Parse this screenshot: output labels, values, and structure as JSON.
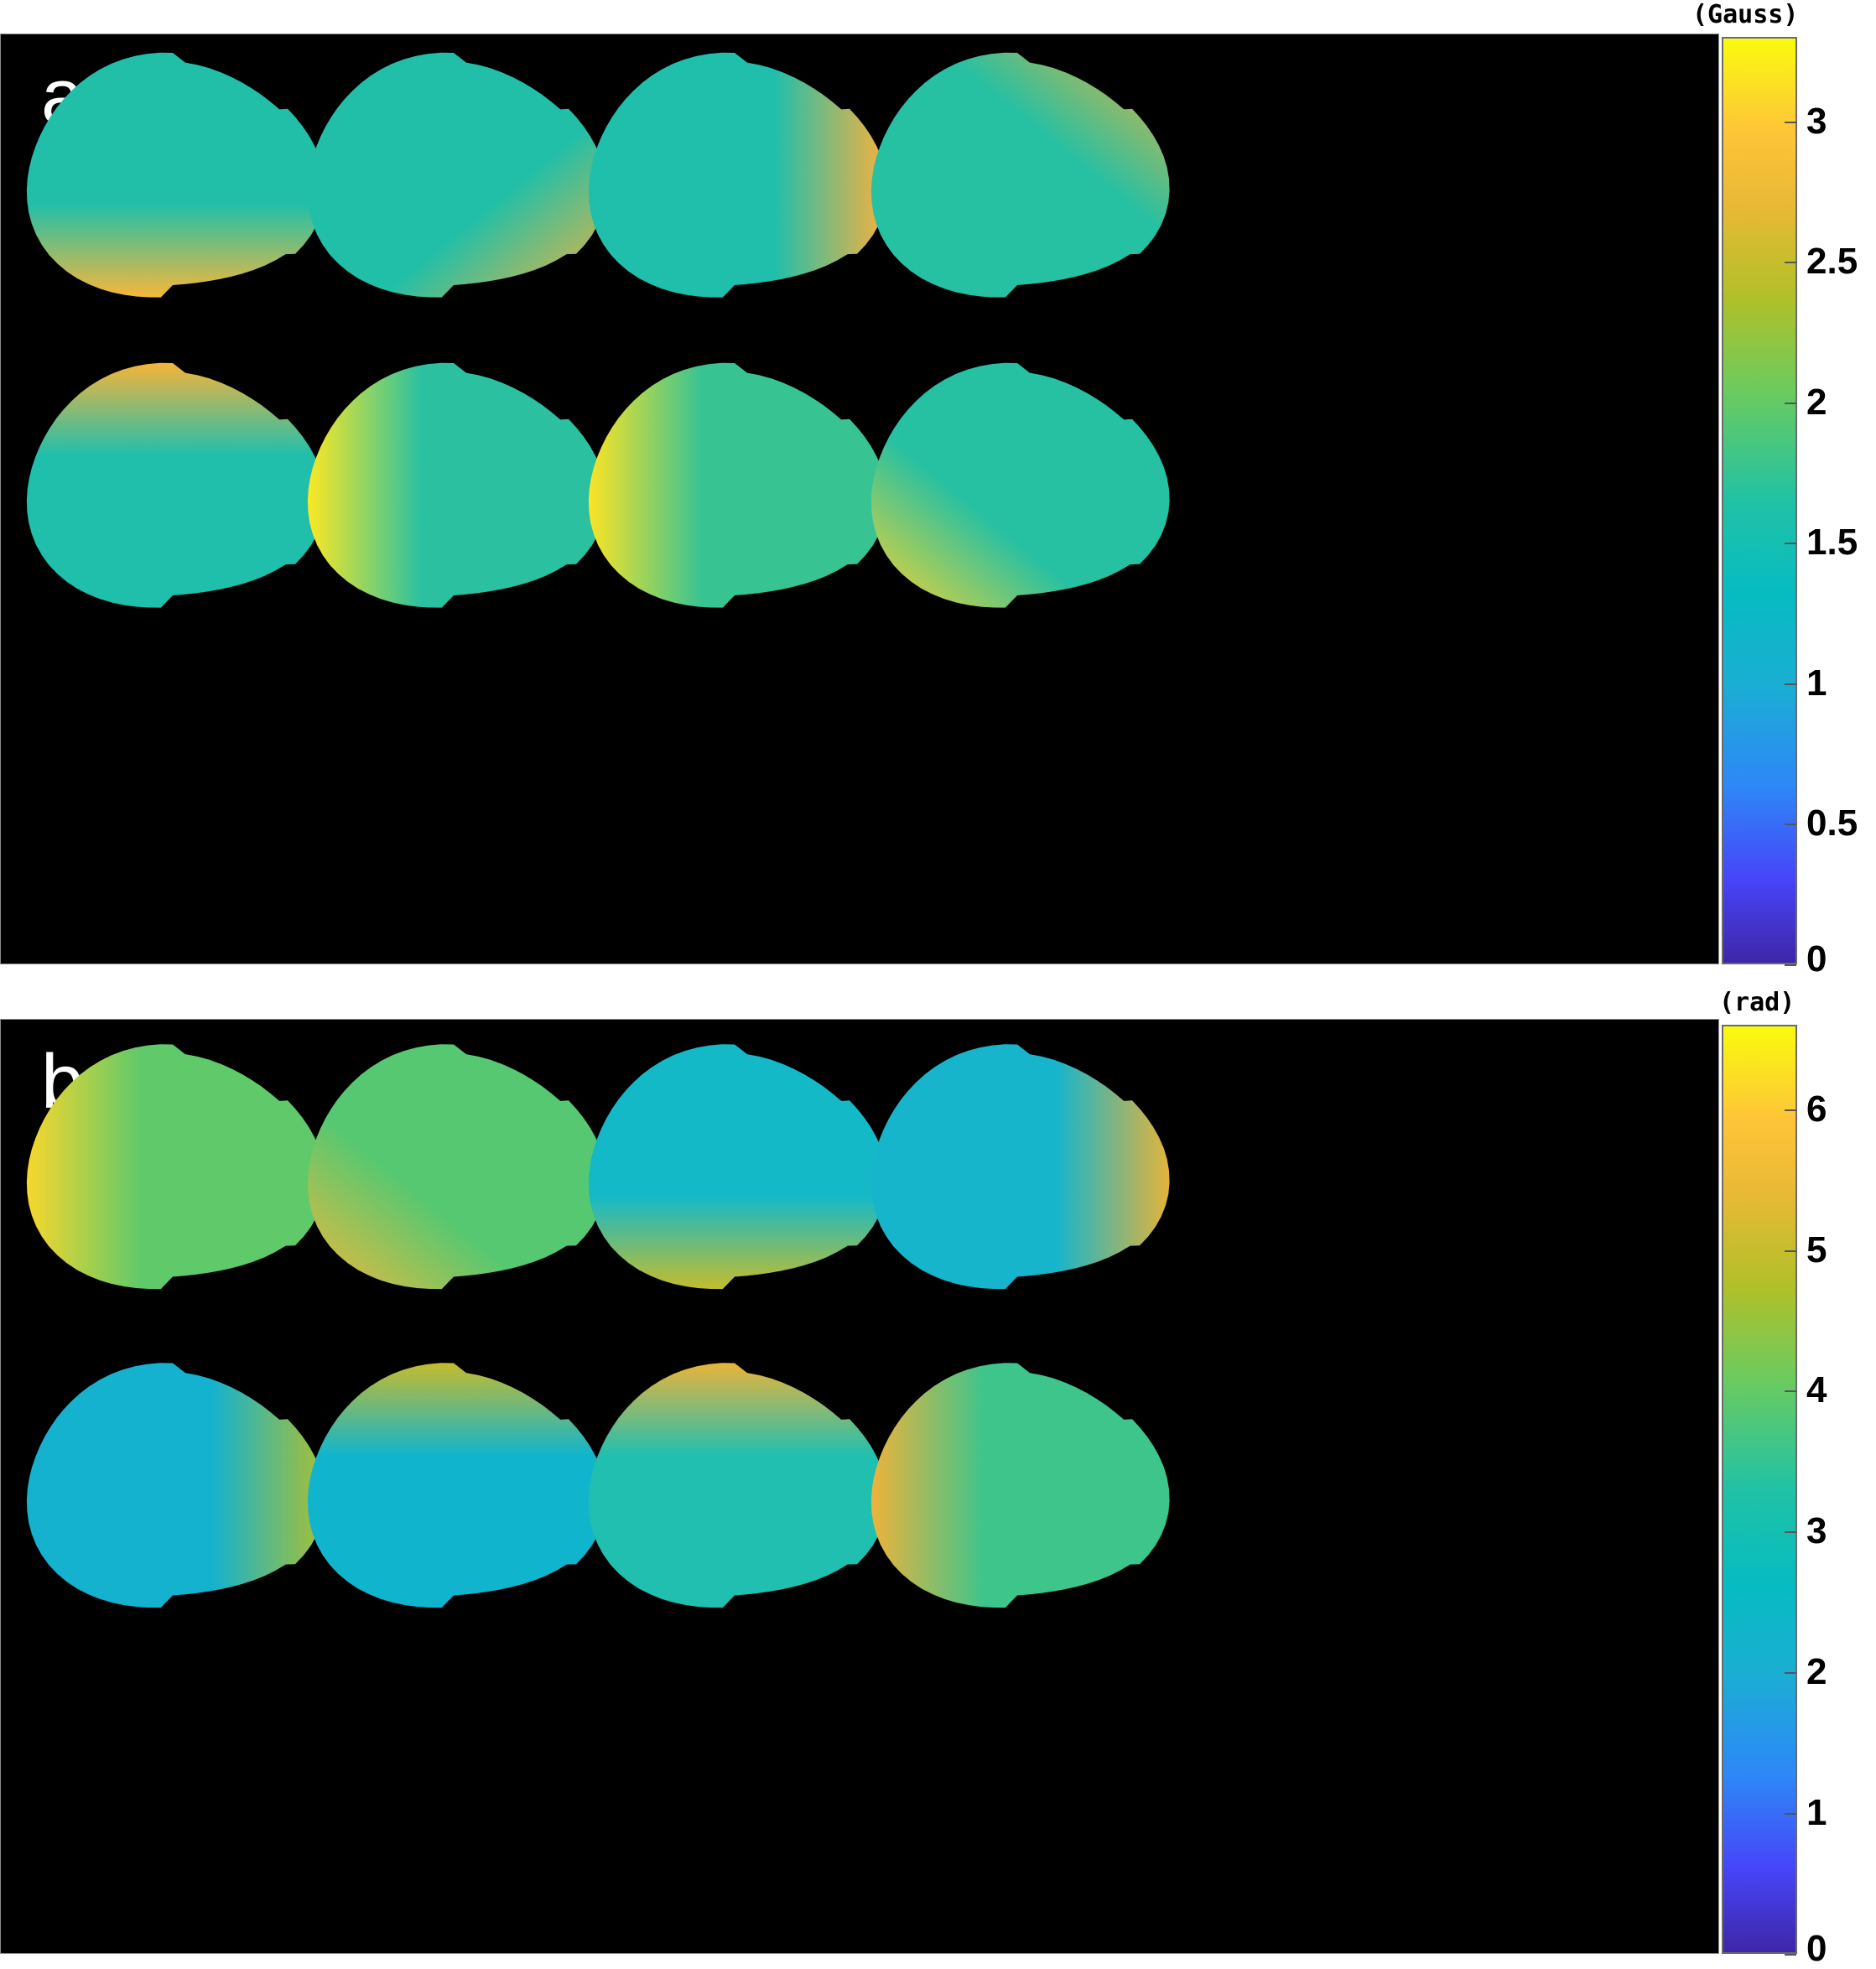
{
  "panels": [
    {
      "label": "a",
      "colorbar": {
        "unit": "(Gauss)",
        "min": 0,
        "max": 3.3,
        "ticks": [
          "0",
          "0.5",
          "1",
          "1.5",
          "2",
          "2.5",
          "3"
        ],
        "tick_values": [
          0,
          0.5,
          1,
          1.5,
          2,
          2.5,
          3
        ],
        "colormap": "parula"
      },
      "maps": [
        {
          "base": "#22bfa8",
          "hot": "#f5b83a",
          "hot_side": "bottom"
        },
        {
          "base": "#22bfa8",
          "hot": "#f3b43b",
          "hot_side": "bottom-right"
        },
        {
          "base": "#1fbfac",
          "hot": "#f8b13d",
          "hot_side": "right"
        },
        {
          "base": "#26c0a3",
          "hot": "#e8b43a",
          "hot_side": "top-right"
        },
        {
          "base": "#1fbfac",
          "hot": "#f5b43a",
          "hot_side": "top"
        },
        {
          "base": "#2bc1a0",
          "hot": "#fbe824",
          "hot_side": "left"
        },
        {
          "base": "#38c393",
          "hot": "#fbe424",
          "hot_side": "left"
        },
        {
          "base": "#26c0a3",
          "hot": "#f8d42e",
          "hot_side": "bottom-left"
        }
      ]
    },
    {
      "label": "b",
      "colorbar": {
        "unit": "(rad)",
        "min": 0,
        "max": 6.6,
        "ticks": [
          "0",
          "1",
          "2",
          "3",
          "4",
          "5",
          "6"
        ],
        "tick_values": [
          0,
          1,
          2,
          3,
          4,
          5,
          6
        ],
        "colormap": "parula"
      },
      "maps": [
        {
          "base": "#60c96a",
          "hot": "#f8d72c",
          "hot_side": "left"
        },
        {
          "base": "#56c871",
          "hot": "#f0b93a",
          "hot_side": "bottom-left"
        },
        {
          "base": "#14b9c8",
          "hot": "#c3bd2e",
          "hot_side": "bottom"
        },
        {
          "base": "#16b5cc",
          "hot": "#e4b43a",
          "hot_side": "right"
        },
        {
          "base": "#14b2cf",
          "hot": "#a9c034",
          "hot_side": "right"
        },
        {
          "base": "#10b5cd",
          "hot": "#c5bb2f",
          "hot_side": "top"
        },
        {
          "base": "#21bfb0",
          "hot": "#e9b43a",
          "hot_side": "top"
        },
        {
          "base": "#3dc58c",
          "hot": "#edb33b",
          "hot_side": "left"
        }
      ]
    }
  ]
}
